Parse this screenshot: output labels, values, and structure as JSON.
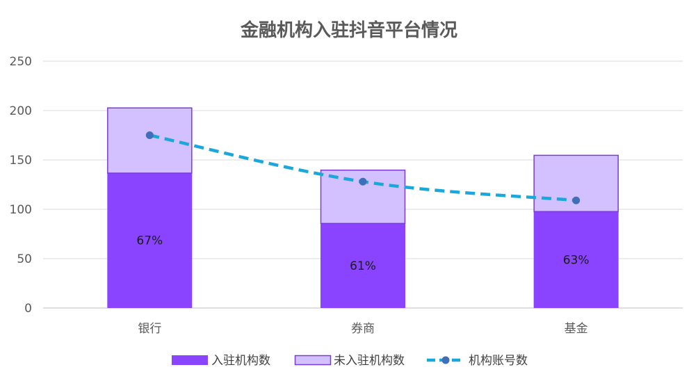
{
  "chart_data": {
    "type": "bar",
    "title": "金融机构入驻抖音平台情况",
    "categories": [
      "银行",
      "券商",
      "基金"
    ],
    "series": [
      {
        "name": "入驻机构数",
        "kind": "stacked-bar",
        "values": [
          137,
          86,
          98
        ],
        "color": "#8a44ff"
      },
      {
        "name": "未入驻机构数",
        "kind": "stacked-bar",
        "values": [
          66,
          54,
          57
        ],
        "color": "#d2c0ff",
        "stroke": "#7a3ad8"
      },
      {
        "name": "机构账号数",
        "kind": "line",
        "values": [
          175,
          128,
          109
        ],
        "color": "#1aa7dc",
        "marker_color": "#3e6fb8",
        "dash": "dashed"
      }
    ],
    "data_labels": [
      "67%",
      "61%",
      "63%"
    ],
    "ylim": [
      0,
      250
    ],
    "yticks": [
      "0",
      "50",
      "100",
      "150",
      "200",
      "250"
    ],
    "xlabel": "",
    "ylabel": "",
    "grid": true,
    "legend_position": "bottom"
  }
}
